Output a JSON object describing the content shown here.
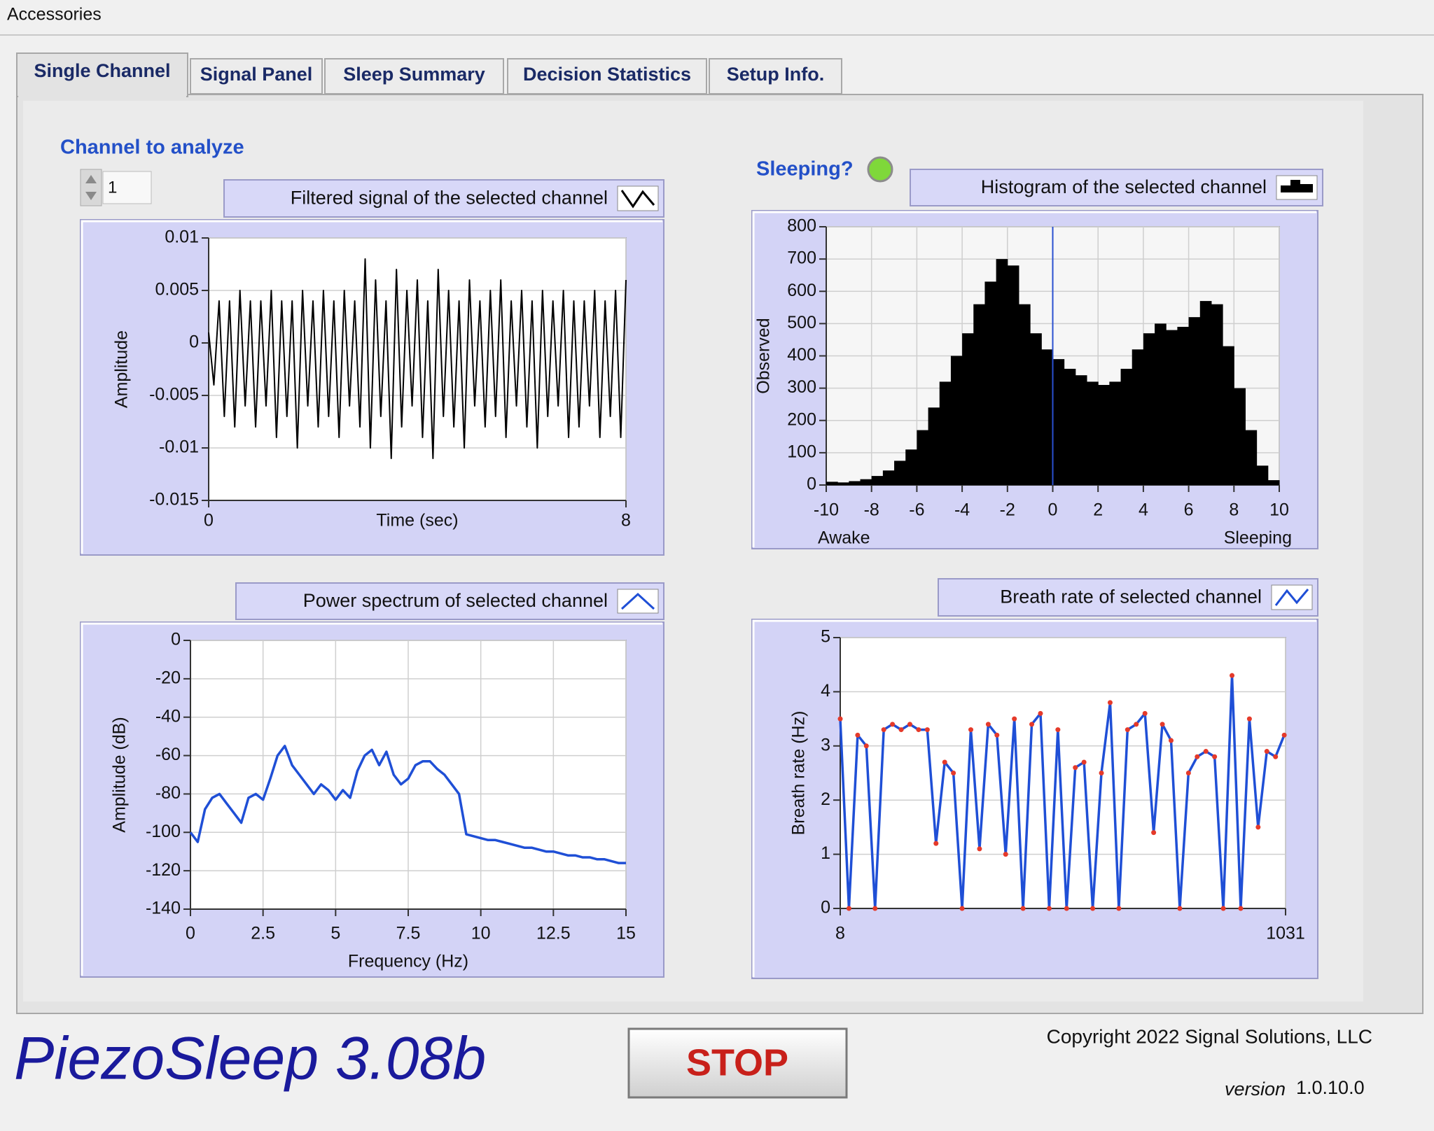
{
  "menu": {
    "title": "Accessories"
  },
  "tabs": [
    "Single Channel",
    "Signal Panel",
    "Sleep Summary",
    "Decision Statistics",
    "Setup Info."
  ],
  "channel": {
    "label": "Channel to analyze",
    "value": 1
  },
  "indicator": {
    "label": "Sleeping?",
    "color": "#7fd83a"
  },
  "chart_data": [
    {
      "type": "line",
      "title": "Filtered signal of the selected channel",
      "xlabel": "Time (sec)",
      "ylabel": "Amplitude",
      "color": "#000000",
      "x": [
        0,
        0.1,
        0.2,
        0.3,
        0.4,
        0.5,
        0.6,
        0.7,
        0.8,
        0.9,
        1,
        1.1,
        1.2,
        1.3,
        1.4,
        1.5,
        1.6,
        1.7,
        1.8,
        1.9,
        2,
        2.1,
        2.2,
        2.3,
        2.4,
        2.5,
        2.6,
        2.7,
        2.8,
        2.9,
        3,
        3.1,
        3.2,
        3.3,
        3.4,
        3.5,
        3.6,
        3.7,
        3.8,
        3.9,
        4,
        4.1,
        4.2,
        4.3,
        4.4,
        4.5,
        4.6,
        4.7,
        4.8,
        4.9,
        5,
        5.1,
        5.2,
        5.3,
        5.4,
        5.5,
        5.6,
        5.7,
        5.8,
        5.9,
        6,
        6.1,
        6.2,
        6.3,
        6.4,
        6.5,
        6.6,
        6.7,
        6.8,
        6.9,
        7,
        7.1,
        7.2,
        7.3,
        7.4,
        7.5,
        7.6,
        7.7,
        7.8,
        7.9,
        8
      ],
      "values": [
        0.001,
        -0.004,
        0.004,
        -0.007,
        0.004,
        -0.008,
        0.005,
        -0.006,
        0.004,
        -0.008,
        0.004,
        -0.006,
        0.005,
        -0.009,
        0.004,
        -0.007,
        0.004,
        -0.01,
        0.005,
        -0.006,
        0.004,
        -0.008,
        0.005,
        -0.007,
        0.004,
        -0.009,
        0.005,
        -0.006,
        0.004,
        -0.008,
        0.008,
        -0.01,
        0.006,
        -0.007,
        0.004,
        -0.011,
        0.007,
        -0.008,
        0.005,
        -0.006,
        0.006,
        -0.009,
        0.004,
        -0.011,
        0.007,
        -0.007,
        0.005,
        -0.008,
        0.004,
        -0.01,
        0.006,
        -0.006,
        0.004,
        -0.008,
        0.005,
        -0.007,
        0.006,
        -0.009,
        0.004,
        -0.006,
        0.005,
        -0.008,
        0.004,
        -0.01,
        0.005,
        -0.007,
        0.004,
        -0.006,
        0.005,
        -0.009,
        0.004,
        -0.008,
        0.004,
        -0.006,
        0.005,
        -0.009,
        0.004,
        -0.007,
        0.005,
        -0.009,
        0.006
      ],
      "xlim": [
        0,
        8
      ],
      "xticks": [
        0,
        8
      ],
      "ylim": [
        -0.015,
        0.01
      ],
      "yticks": [
        0.01,
        0.005,
        0,
        -0.005,
        -0.01,
        -0.015
      ],
      "grid": true
    },
    {
      "type": "histogram",
      "title": "Histogram of the selected channel",
      "ylabel": "Observed",
      "color": "#000000",
      "annotations": [
        "Awake",
        "Sleeping"
      ],
      "bins": [
        -10,
        -9.5,
        -9,
        -8.5,
        -8,
        -7.5,
        -7,
        -6.5,
        -6,
        -5.5,
        -5,
        -4.5,
        -4,
        -3.5,
        -3,
        -2.5,
        -2,
        -1.5,
        -1,
        -0.5,
        0,
        0.5,
        1,
        1.5,
        2,
        2.5,
        3,
        3.5,
        4,
        4.5,
        5,
        5.5,
        6,
        6.5,
        7,
        7.5,
        8,
        8.5,
        9,
        9.5,
        10
      ],
      "values": [
        10,
        8,
        12,
        18,
        28,
        45,
        75,
        110,
        170,
        240,
        320,
        400,
        470,
        560,
        630,
        700,
        680,
        560,
        470,
        420,
        390,
        360,
        340,
        320,
        310,
        320,
        360,
        420,
        470,
        500,
        480,
        490,
        520,
        570,
        560,
        430,
        300,
        170,
        60,
        15
      ],
      "cursor_x": 0,
      "cursor_color": "#2a50d0",
      "xlim": [
        -10,
        10
      ],
      "xticks": [
        -10,
        -8,
        -6,
        -4,
        -2,
        0,
        2,
        4,
        6,
        8,
        10
      ],
      "ylim": [
        0,
        800
      ],
      "yticks": [
        800,
        700,
        600,
        500,
        400,
        300,
        200,
        100,
        0
      ],
      "grid": true
    },
    {
      "type": "line",
      "title": "Power spectrum of selected channel",
      "xlabel": "Frequency (Hz)",
      "ylabel": "Amplitude (dB)",
      "color": "#1f4fd6",
      "x": [
        0,
        0.25,
        0.5,
        0.75,
        1,
        1.25,
        1.5,
        1.75,
        2,
        2.25,
        2.5,
        2.75,
        3,
        3.25,
        3.5,
        3.75,
        4,
        4.25,
        4.5,
        4.75,
        5,
        5.25,
        5.5,
        5.75,
        6,
        6.25,
        6.5,
        6.75,
        7,
        7.25,
        7.5,
        7.75,
        8,
        8.25,
        8.5,
        8.75,
        9,
        9.25,
        9.5,
        9.75,
        10,
        10.25,
        10.5,
        10.75,
        11,
        11.25,
        11.5,
        11.75,
        12,
        12.25,
        12.5,
        12.75,
        13,
        13.25,
        13.5,
        13.75,
        14,
        14.25,
        14.5,
        14.75,
        15
      ],
      "values": [
        -100,
        -105,
        -88,
        -82,
        -80,
        -85,
        -90,
        -95,
        -82,
        -80,
        -83,
        -72,
        -60,
        -55,
        -65,
        -70,
        -75,
        -80,
        -75,
        -78,
        -83,
        -78,
        -82,
        -68,
        -60,
        -57,
        -65,
        -58,
        -70,
        -75,
        -72,
        -65,
        -63,
        -63,
        -67,
        -70,
        -75,
        -80,
        -101,
        -102,
        -103,
        -104,
        -104,
        -105,
        -106,
        -107,
        -108,
        -108,
        -109,
        -110,
        -110,
        -111,
        -112,
        -112,
        -113,
        -113,
        -114,
        -114,
        -115,
        -116,
        -116
      ],
      "xlim": [
        0,
        15
      ],
      "xticks": [
        0,
        2.5,
        5,
        7.5,
        10,
        12.5,
        15
      ],
      "ylim": [
        -140,
        0
      ],
      "yticks": [
        0,
        -20,
        -40,
        -60,
        -80,
        -100,
        -120,
        -140
      ],
      "grid": true
    },
    {
      "type": "line",
      "title": "Breath rate of selected channel",
      "ylabel": "Breath rate (Hz)",
      "color": "#1f4fd6",
      "marker_color": "#e53a2a",
      "x": [
        8,
        28,
        48,
        68,
        88,
        108,
        128,
        148,
        168,
        188,
        208,
        228,
        248,
        268,
        288,
        308,
        328,
        348,
        368,
        388,
        408,
        428,
        448,
        468,
        488,
        508,
        528,
        548,
        568,
        588,
        608,
        628,
        648,
        668,
        688,
        708,
        728,
        748,
        768,
        788,
        808,
        828,
        848,
        868,
        888,
        908,
        928,
        948,
        968,
        988,
        1008,
        1028
      ],
      "values": [
        3.5,
        0,
        3.2,
        3.0,
        0,
        3.3,
        3.4,
        3.3,
        3.4,
        3.3,
        3.3,
        1.2,
        2.7,
        2.5,
        0,
        3.3,
        1.1,
        3.4,
        3.2,
        1.0,
        3.5,
        0,
        3.4,
        3.6,
        0,
        3.3,
        0,
        2.6,
        2.7,
        0,
        2.5,
        3.8,
        0,
        3.3,
        3.4,
        3.6,
        1.4,
        3.4,
        3.1,
        0,
        2.5,
        2.8,
        2.9,
        2.8,
        0,
        4.3,
        0,
        3.5,
        1.5,
        2.9,
        2.8,
        3.2
      ],
      "xlim": [
        8,
        1031
      ],
      "xticks": [
        8,
        1031
      ],
      "ylim": [
        0,
        5
      ],
      "yticks": [
        5,
        4,
        3,
        2,
        1,
        0
      ],
      "grid": true
    }
  ],
  "footer": {
    "app_name": "PiezoSleep 3.08b",
    "button": "STOP",
    "copyright": "Copyright 2022 Signal Solutions, LLC",
    "version_label": "version",
    "version": "1.0.10.0"
  }
}
